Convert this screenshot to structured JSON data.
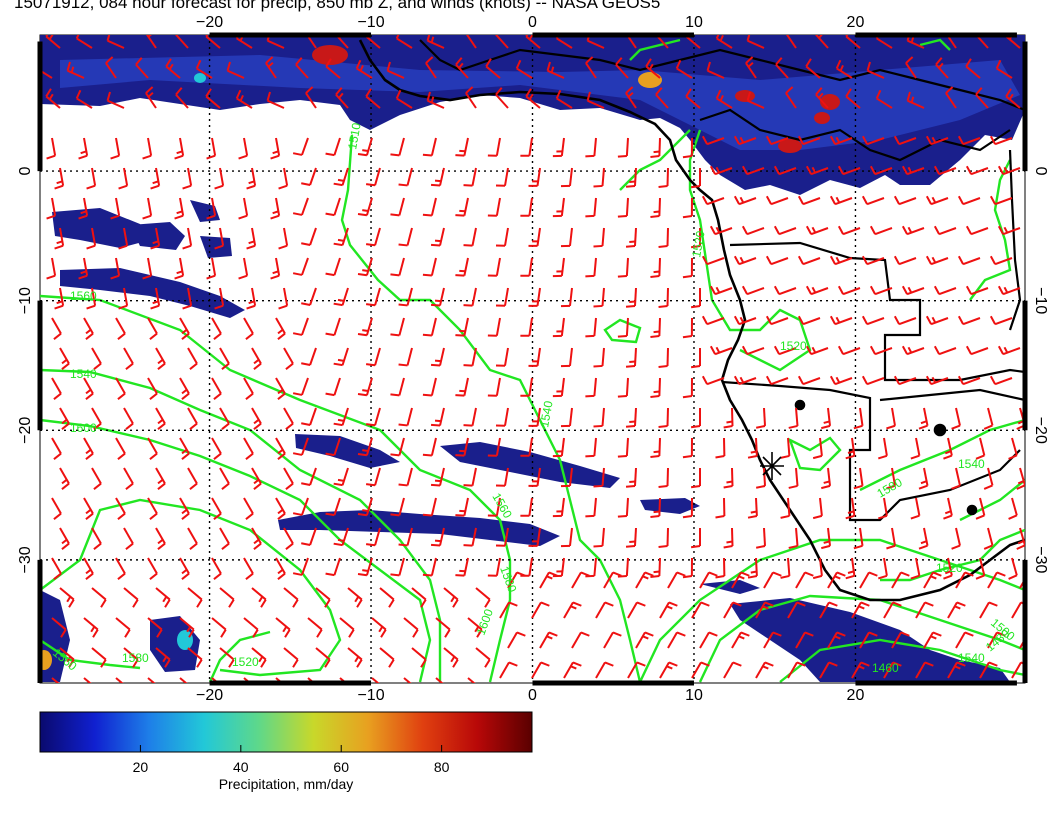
{
  "title": "15071912, 084 hour forecast for precip, 850 mb Z, and winds (knots) -- NASA GEOS5",
  "map": {
    "lon_ticks": [
      "−20",
      "−10",
      "0",
      "10",
      "20"
    ],
    "lat_ticks": [
      "0",
      "−10",
      "−20",
      "−30"
    ],
    "lon_range": [
      -30.5,
      30.5
    ],
    "lat_range": [
      -39.5,
      10.5
    ],
    "colors": {
      "precip_dark": "#1a1f8c",
      "precip_mid": "#2f4fd8",
      "precip_high": "#c81818",
      "contour": "#22e622",
      "wind_barb": "#ee1111",
      "coast": "#000000",
      "graticule": "#000000"
    },
    "contour_labels": [
      {
        "text": "1510"
      },
      {
        "text": "1560"
      },
      {
        "text": "1540"
      },
      {
        "text": "1600"
      },
      {
        "text": "1540"
      },
      {
        "text": "1560"
      },
      {
        "text": "1580"
      },
      {
        "text": "1600"
      },
      {
        "text": "1560"
      },
      {
        "text": "1580"
      },
      {
        "text": "1520"
      },
      {
        "text": "1520"
      },
      {
        "text": "1520"
      },
      {
        "text": "1580"
      },
      {
        "text": "1540"
      },
      {
        "text": "1520"
      },
      {
        "text": "1500"
      },
      {
        "text": "1480"
      },
      {
        "text": "1460"
      },
      {
        "text": "1540"
      }
    ]
  },
  "colorbar": {
    "ticks": [
      "20",
      "40",
      "60",
      "80"
    ],
    "range": [
      0,
      98
    ],
    "label": "Precipitation, mm/day",
    "stops": [
      "#0a0a6e",
      "#1020d0",
      "#1e7fe8",
      "#22c8d8",
      "#5ed88a",
      "#c8d82a",
      "#e8a020",
      "#e04010",
      "#b80808",
      "#5a0000"
    ]
  }
}
